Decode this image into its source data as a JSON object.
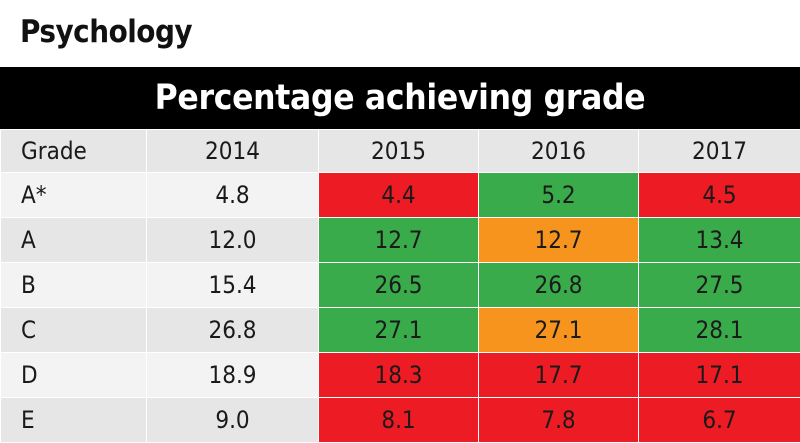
{
  "subject": "Psychology",
  "banner_title": "Percentage achieving grade",
  "colors": {
    "up": "#3aab4a",
    "same": "#f7941d",
    "down": "#ed1c24"
  },
  "chart_data": {
    "type": "table",
    "title": "Percentage achieving grade",
    "columns": [
      "Grade",
      "2014",
      "2015",
      "2016",
      "2017"
    ],
    "rows": [
      {
        "grade": "A*",
        "values": [
          "4.8",
          "4.4",
          "5.2",
          "4.5"
        ],
        "status": [
          null,
          "down",
          "up",
          "down"
        ]
      },
      {
        "grade": "A",
        "values": [
          "12.0",
          "12.7",
          "12.7",
          "13.4"
        ],
        "status": [
          null,
          "up",
          "same",
          "up"
        ]
      },
      {
        "grade": "B",
        "values": [
          "15.4",
          "26.5",
          "26.8",
          "27.5"
        ],
        "status": [
          null,
          "up",
          "up",
          "up"
        ]
      },
      {
        "grade": "C",
        "values": [
          "26.8",
          "27.1",
          "27.1",
          "28.1"
        ],
        "status": [
          null,
          "up",
          "same",
          "up"
        ]
      },
      {
        "grade": "D",
        "values": [
          "18.9",
          "18.3",
          "17.7",
          "17.1"
        ],
        "status": [
          null,
          "down",
          "down",
          "down"
        ]
      },
      {
        "grade": "E",
        "values": [
          "9.0",
          "8.1",
          "7.8",
          "6.7"
        ],
        "status": [
          null,
          "down",
          "down",
          "down"
        ]
      }
    ]
  }
}
